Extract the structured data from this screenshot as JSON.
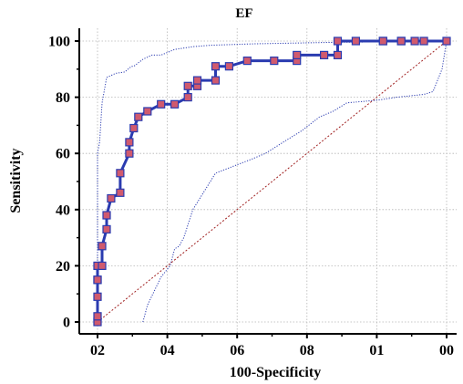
{
  "chart_data": {
    "type": "line",
    "title": "EF",
    "xlabel": "100-Specificity",
    "ylabel": "Sensitivity",
    "xlim": [
      0,
      100
    ],
    "ylim": [
      0,
      100
    ],
    "x_tick_labels": [
      "02",
      "04",
      "06",
      "08",
      "01",
      "00"
    ],
    "y_tick_labels": [
      "0",
      "20",
      "40",
      "60",
      "80",
      "100"
    ],
    "grid": true,
    "colors": {
      "roc": "#2a3bb0",
      "marker": "#d05a6e",
      "ci": "#2a3bb0",
      "reference": "#a02020",
      "grid": "#b5b5b5"
    },
    "series": [
      {
        "role": "roc-curve",
        "style": "solid-with-square-markers",
        "x": [
          0,
          0,
          0,
          0,
          0,
          0,
          1.3,
          1.3,
          2.6,
          2.6,
          3.9,
          6.5,
          6.5,
          9.1,
          9.1,
          10.4,
          11.7,
          14.3,
          18.2,
          22.1,
          25.9,
          25.9,
          28.6,
          28.6,
          33.8,
          33.8,
          37.7,
          42.9,
          50.6,
          57.1,
          57.1,
          64.9,
          68.8,
          68.8,
          74.0,
          81.8,
          81.8,
          87.0,
          87.0,
          90.9,
          93.5,
          100
        ],
        "y": [
          0,
          2,
          9,
          15,
          15,
          20,
          20,
          27,
          33,
          38,
          44,
          46,
          53,
          60,
          64,
          69,
          73,
          75,
          77.5,
          77.5,
          80,
          84,
          84,
          86,
          86,
          91,
          91,
          93,
          93,
          93,
          95,
          95,
          95,
          100,
          100,
          100,
          100,
          100,
          100,
          100,
          100,
          100
        ]
      },
      {
        "role": "ci-upper",
        "style": "dotted",
        "x": [
          0,
          0,
          0.6,
          1.3,
          2.6,
          5.2,
          7.8,
          9.7,
          10.4,
          13.0,
          15.6,
          18.2,
          22.1,
          27.3,
          32.5,
          44.2,
          66.2,
          100
        ],
        "y": [
          0,
          60,
          64,
          78,
          87,
          88.5,
          89,
          91,
          91,
          93.5,
          95,
          95,
          97,
          98,
          98.5,
          99,
          99.5,
          100
        ]
      },
      {
        "role": "ci-lower",
        "style": "dotted",
        "x": [
          13.0,
          14.3,
          18.2,
          20.8,
          22.1,
          23.4,
          24.7,
          26.0,
          27.3,
          33.8,
          44.2,
          48.1,
          54.5,
          58.4,
          63.6,
          67.5,
          71.4,
          80.5,
          85.7,
          93.5,
          96.1,
          98.7,
          100
        ],
        "y": [
          0,
          6,
          16,
          20,
          26,
          27,
          30,
          35,
          40,
          53,
          58,
          60,
          65,
          68,
          73,
          75,
          78,
          79,
          80,
          81,
          82,
          90,
          100
        ]
      },
      {
        "role": "reference-line",
        "style": "dotted",
        "x": [
          0,
          100
        ],
        "y": [
          0,
          100
        ]
      }
    ]
  }
}
